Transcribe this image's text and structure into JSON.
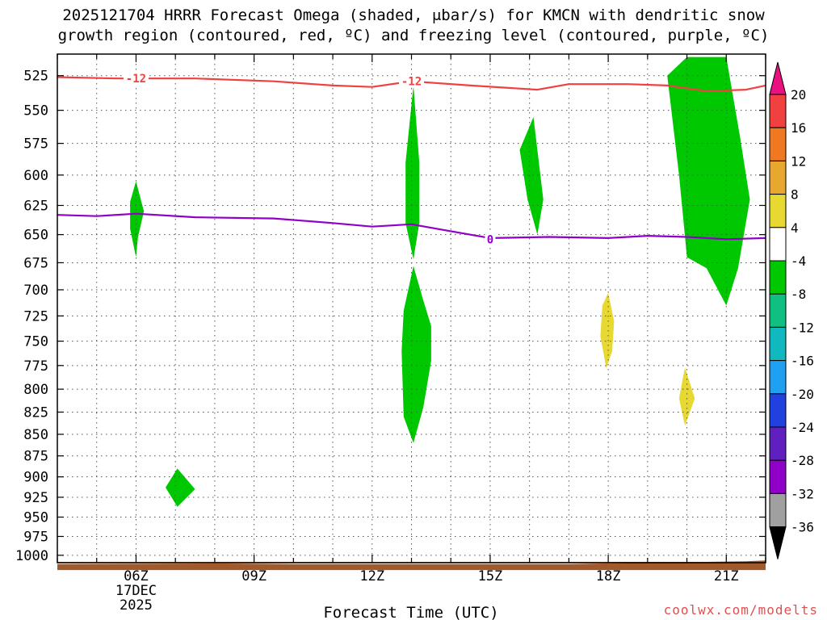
{
  "chart_data": {
    "type": "contour",
    "title_line1": "2025121704 HRRR Forecast Omega (shaded, μbar/s) for KMCN with dendritic snow",
    "title_line2": "growth region (contoured, red, ºC) and freezing level (contoured, purple, ºC)",
    "xlabel": "Forecast Time (UTC)",
    "ylabel": "",
    "x_ticks": [
      {
        "hour": 6,
        "label": "06Z"
      },
      {
        "hour": 9,
        "label": "09Z"
      },
      {
        "hour": 12,
        "label": "12Z"
      },
      {
        "hour": 15,
        "label": "15Z"
      },
      {
        "hour": 18,
        "label": "18Z"
      },
      {
        "hour": 21,
        "label": "21Z"
      }
    ],
    "date_label": [
      "17DEC",
      "2025"
    ],
    "xlim": [
      4.0,
      22.0
    ],
    "y_ticks": [
      525,
      550,
      575,
      600,
      625,
      650,
      675,
      700,
      725,
      750,
      775,
      800,
      825,
      850,
      875,
      900,
      925,
      950,
      975,
      1000
    ],
    "ylim": [
      1010,
      510
    ],
    "y_scale": "log-pressure",
    "grid": true,
    "colorbar": {
      "levels": [
        -36,
        -32,
        -28,
        -24,
        -20,
        -16,
        -12,
        -8,
        -4,
        4,
        8,
        12,
        16,
        20
      ],
      "labels": [
        "20",
        "16",
        "12",
        "8",
        "4",
        "-4",
        "-8",
        "-12",
        "-16",
        "-20",
        "-24",
        "-28",
        "-32",
        "-36"
      ],
      "colors_top_to_bottom": [
        "#e8117f",
        "#f04040",
        "#f07820",
        "#e8a830",
        "#e8d832",
        "#ffffff",
        "#00c800",
        "#10c080",
        "#10b8c0",
        "#20a0f0",
        "#2040e0",
        "#6020c0",
        "#9000c8",
        "#a0a0a0",
        "#000000"
      ]
    },
    "contours": [
      {
        "color": "#f04040",
        "label": "-12",
        "label_points": [
          {
            "hour": 6.0,
            "p": 527
          },
          {
            "hour": 13.0,
            "p": 529
          }
        ],
        "points": [
          [
            4.0,
            526
          ],
          [
            5.5,
            527
          ],
          [
            6.5,
            527
          ],
          [
            7.5,
            527
          ],
          [
            9.5,
            529
          ],
          [
            11.0,
            532
          ],
          [
            12.0,
            533
          ],
          [
            13.0,
            529
          ],
          [
            14.5,
            532
          ],
          [
            16.2,
            535
          ],
          [
            17.0,
            531
          ],
          [
            18.5,
            531
          ],
          [
            19.5,
            532
          ],
          [
            20.5,
            536
          ],
          [
            21.5,
            535
          ],
          [
            22.0,
            532
          ]
        ]
      },
      {
        "color": "#9000c8",
        "label": "0",
        "label_points": [
          {
            "hour": 15.0,
            "p": 654
          }
        ],
        "points": [
          [
            4.0,
            633
          ],
          [
            5.0,
            634
          ],
          [
            6.0,
            632
          ],
          [
            7.5,
            635
          ],
          [
            9.5,
            636
          ],
          [
            11.0,
            640
          ],
          [
            12.0,
            643
          ],
          [
            13.0,
            641
          ],
          [
            14.0,
            647
          ],
          [
            15.0,
            653
          ],
          [
            16.5,
            652
          ],
          [
            18.0,
            653
          ],
          [
            19.0,
            651
          ],
          [
            20.0,
            652
          ],
          [
            21.0,
            654
          ],
          [
            22.0,
            653
          ]
        ]
      }
    ],
    "shaded_regions": [
      {
        "band": "-8 to -4",
        "color": "#00c800",
        "points": [
          [
            6.0,
            605
          ],
          [
            6.2,
            630
          ],
          [
            6.05,
            652
          ],
          [
            6.0,
            670
          ],
          [
            5.85,
            645
          ],
          [
            5.85,
            622
          ]
        ]
      },
      {
        "band": "-8 to -4",
        "color": "#00c800",
        "points": [
          [
            7.05,
            890
          ],
          [
            7.5,
            915
          ],
          [
            7.05,
            937
          ],
          [
            6.75,
            913
          ]
        ]
      },
      {
        "band": "-8 to -4",
        "color": "#00c800",
        "points": [
          [
            13.05,
            532
          ],
          [
            13.2,
            590
          ],
          [
            13.2,
            640
          ],
          [
            13.05,
            672
          ],
          [
            12.85,
            640
          ],
          [
            12.85,
            590
          ]
        ]
      },
      {
        "band": "-8 to -4",
        "color": "#00c800",
        "points": [
          [
            13.05,
            678
          ],
          [
            13.3,
            710
          ],
          [
            13.5,
            735
          ],
          [
            13.5,
            770
          ],
          [
            13.3,
            820
          ],
          [
            13.05,
            860
          ],
          [
            12.8,
            830
          ],
          [
            12.75,
            760
          ],
          [
            12.8,
            720
          ]
        ]
      },
      {
        "band": "-8 to -4",
        "color": "#00c800",
        "points": [
          [
            16.1,
            555
          ],
          [
            16.35,
            620
          ],
          [
            16.2,
            650
          ],
          [
            15.95,
            620
          ],
          [
            15.75,
            580
          ]
        ]
      },
      {
        "band": "-8 to -4",
        "color": "#00c800",
        "points": [
          [
            20.0,
            512
          ],
          [
            21.0,
            512
          ],
          [
            21.35,
            570
          ],
          [
            21.6,
            620
          ],
          [
            21.3,
            680
          ],
          [
            21.0,
            715
          ],
          [
            20.5,
            680
          ],
          [
            20.0,
            670
          ],
          [
            19.8,
            600
          ],
          [
            19.5,
            525
          ]
        ]
      },
      {
        "band": "4 to 8",
        "color": "#e8d832",
        "points": [
          [
            18.0,
            703
          ],
          [
            18.15,
            730
          ],
          [
            18.1,
            760
          ],
          [
            17.95,
            778
          ],
          [
            17.8,
            745
          ],
          [
            17.85,
            715
          ]
        ]
      },
      {
        "band": "4 to 8",
        "color": "#e8d832",
        "points": [
          [
            19.95,
            777
          ],
          [
            20.2,
            810
          ],
          [
            19.95,
            840
          ],
          [
            19.8,
            810
          ]
        ]
      }
    ],
    "terrain_color": "#a05a2c",
    "terrain_points": [
      [
        4.0,
        1012
      ],
      [
        8.0,
        1011
      ],
      [
        10.0,
        1012
      ],
      [
        17.0,
        1012
      ],
      [
        18.0,
        1011
      ],
      [
        21.5,
        1008
      ],
      [
        22.0,
        1007
      ]
    ]
  },
  "watermark": "coolwx.com/modelts"
}
